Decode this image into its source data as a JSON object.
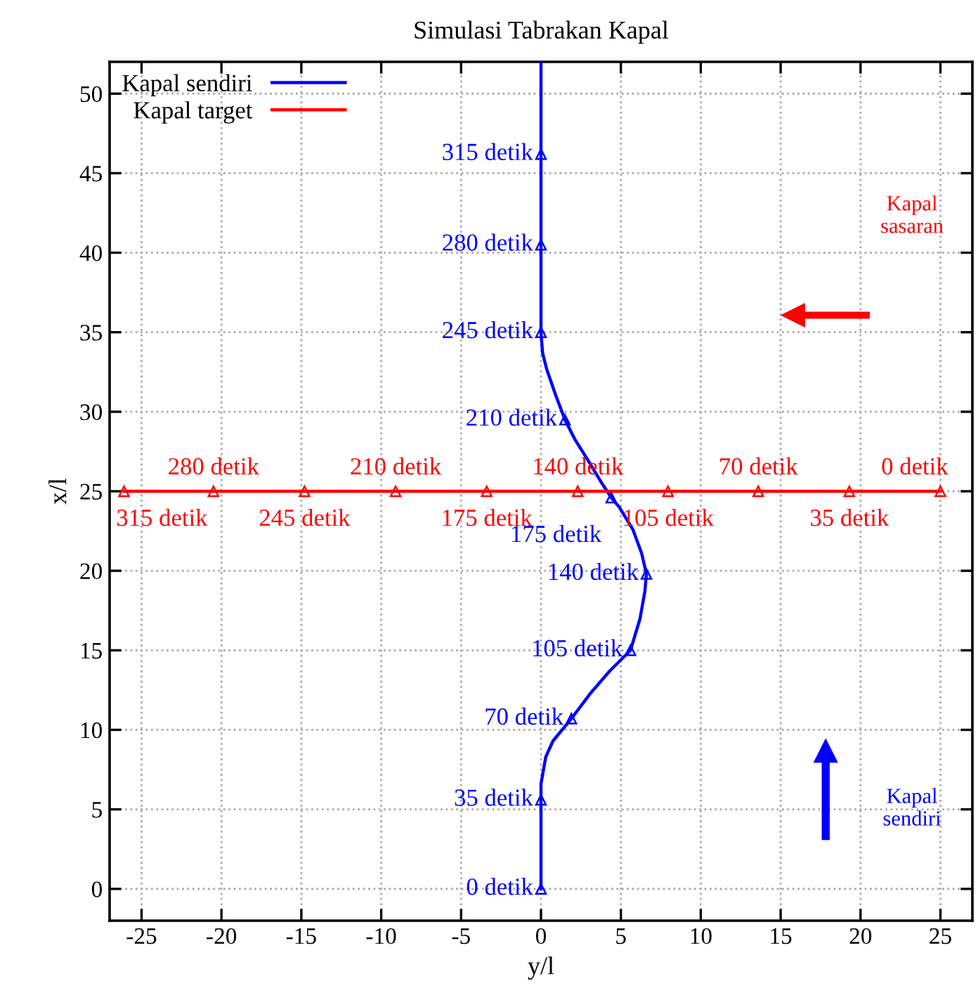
{
  "chart_data": {
    "type": "line",
    "title": "Simulasi Tabrakan Kapal",
    "xlabel": "y/l",
    "ylabel": "x/l",
    "xlim": [
      -27,
      27
    ],
    "ylim": [
      -2,
      52
    ],
    "xticks": [
      -25,
      -20,
      -15,
      -10,
      -5,
      0,
      5,
      10,
      15,
      20,
      25
    ],
    "yticks": [
      0,
      5,
      10,
      15,
      20,
      25,
      30,
      35,
      40,
      45,
      50
    ],
    "grid": true,
    "legend": "top left",
    "marker": "triangle",
    "line_style": "solid",
    "annotations": [
      "Kapal\nsasaran",
      "Kapal\nsendiri",
      {
        "text": "0 detik",
        "x": 0,
        "y": 0
      },
      {
        "text": "35 detik",
        "x": 0,
        "y": 5.6
      },
      {
        "text": "70 detik",
        "x": 1.9,
        "y": 10.7
      },
      {
        "text": "105 detik",
        "x": 5.6,
        "y": 15
      },
      {
        "text": "140 detik",
        "x": 6.6,
        "y": 19.8
      },
      {
        "text": "175 detik",
        "x": 4.4,
        "y": 24.6
      },
      {
        "text": "210 detik",
        "x": 1.5,
        "y": 29.5
      },
      {
        "text": "245 detik",
        "x": 0,
        "y": 35
      },
      {
        "text": "280 detik",
        "x": 0,
        "y": 40.5
      },
      {
        "text": "315 detik",
        "x": 0,
        "y": 46.2
      },
      {
        "text": "0 detik",
        "x": 25,
        "y": 25
      },
      {
        "text": "35 detik",
        "x": 19.3,
        "y": 25
      },
      {
        "text": "70 detik",
        "x": 13.6,
        "y": 25
      },
      {
        "text": "105 detik",
        "x": 7.95,
        "y": 25
      },
      {
        "text": "140 detik",
        "x": 2.3,
        "y": 25
      },
      {
        "text": "175 detik",
        "x": -3.4,
        "y": 25
      },
      {
        "text": "210 detik",
        "x": -9.1,
        "y": 25
      },
      {
        "text": "245 detik",
        "x": -14.8,
        "y": 25
      },
      {
        "text": "280 detik",
        "x": -20.5,
        "y": 25
      },
      {
        "text": "315 detik",
        "x": -26.1,
        "y": 25
      }
    ],
    "series": [
      {
        "name": "Kapal sendiri",
        "color": "#0000ff",
        "marker": "none",
        "x": [
          0,
          0,
          0,
          0.3,
          0.75,
          1.9,
          3.1,
          4.3,
          5.6,
          6.2,
          6.5,
          6.6,
          6.3,
          5.75,
          4.9,
          4.4,
          3.75,
          2.85,
          2.1,
          1.5,
          0.9,
          0.35,
          0.1,
          0,
          0,
          0,
          0
        ],
        "values": [
          0,
          5.6,
          6.6,
          8.3,
          9.3,
          10.7,
          12.3,
          13.7,
          15,
          17,
          18.7,
          19.8,
          21.1,
          22.6,
          24,
          24.6,
          25.6,
          27.1,
          28.3,
          29.5,
          31.1,
          32.7,
          33.7,
          35,
          40.5,
          46.2,
          52
        ]
      },
      {
        "type": "scatter",
        "color": "#0000ff",
        "x": [
          0,
          0,
          1.9,
          5.6,
          6.6,
          4.4,
          1.5,
          0,
          0,
          0
        ],
        "values": [
          0,
          5.6,
          10.7,
          15,
          19.8,
          24.6,
          29.5,
          35,
          40.5,
          46.2
        ]
      },
      {
        "name": "Kapal target",
        "color": "#ff0000",
        "x": [
          25,
          19.3,
          13.6,
          7.95,
          2.3,
          -3.4,
          -9.1,
          -14.8,
          -20.5,
          -26.1
        ],
        "values": [
          25,
          25,
          25,
          25,
          25,
          25,
          25,
          25,
          25,
          25
        ]
      }
    ]
  }
}
